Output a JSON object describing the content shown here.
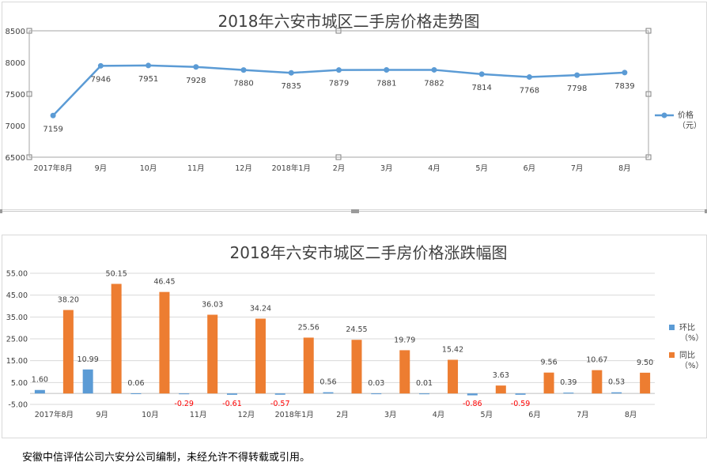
{
  "colors": {
    "line": "#5b9bd5",
    "mom_bar": "#5b9bd5",
    "yoy_bar": "#ed7d31",
    "negative_label": "#ff0000",
    "text": "#404040",
    "grid": "#d9d9d9"
  },
  "footer_note": "安徽中信评估公司六安分公司编制，未经允许不得转载或引用。",
  "chart_data": [
    {
      "type": "line",
      "title": "2018年六安市城区二手房价格走势图",
      "categories": [
        "2017年8月",
        "9月",
        "10月",
        "11月",
        "12月",
        "2018年1月",
        "2月",
        "3月",
        "4月",
        "5月",
        "6月",
        "7月",
        "8月"
      ],
      "series": [
        {
          "name": "价格",
          "unit": "（元）",
          "values": [
            7159,
            7946,
            7951,
            7928,
            7880,
            7835,
            7879,
            7881,
            7882,
            7814,
            7768,
            7798,
            7839
          ],
          "labels": [
            "7159",
            "7946",
            "7951",
            "7928",
            "7880",
            "7835",
            "7879",
            "7881",
            "7882",
            "7814",
            "7768",
            "7798",
            "7839"
          ]
        }
      ],
      "ylim": [
        6500,
        8500
      ],
      "yticks": [
        "6500",
        "7000",
        "7500",
        "8000",
        "8500"
      ],
      "legend": "right",
      "grid": false
    },
    {
      "type": "bar",
      "title": "2018年六安市城区二手房价格涨跌幅图",
      "categories": [
        "2017年8月",
        "9月",
        "10月",
        "11月",
        "12月",
        "2018年1月",
        "2月",
        "3月",
        "4月",
        "5月",
        "6月",
        "7月",
        "8月"
      ],
      "series": [
        {
          "name": "环比",
          "unit": "（%）",
          "values": [
            1.6,
            10.99,
            0.06,
            -0.29,
            -0.61,
            -0.57,
            0.56,
            0.03,
            0.01,
            -0.86,
            -0.59,
            0.39,
            0.53
          ],
          "labels": [
            "1.60",
            "10.99",
            "0.06",
            "-0.29",
            "-0.61",
            "-0.57",
            "0.56",
            "0.03",
            "0.01",
            "-0.86",
            "-0.59",
            "0.39",
            "0.53"
          ]
        },
        {
          "name": "同比",
          "unit": "（%）",
          "values": [
            38.2,
            50.15,
            46.45,
            36.03,
            34.24,
            25.56,
            24.55,
            19.79,
            15.42,
            3.63,
            9.56,
            10.67,
            9.5
          ],
          "labels": [
            "38.20",
            "50.15",
            "46.45",
            "36.03",
            "34.24",
            "25.56",
            "24.55",
            "19.79",
            "15.42",
            "3.63",
            "9.56",
            "10.67",
            "9.50"
          ]
        }
      ],
      "ylim": [
        -5,
        55
      ],
      "yticks": [
        "-5.00",
        "5.00",
        "15.00",
        "25.00",
        "35.00",
        "45.00",
        "55.00"
      ],
      "legend": "right",
      "grid": true
    }
  ]
}
